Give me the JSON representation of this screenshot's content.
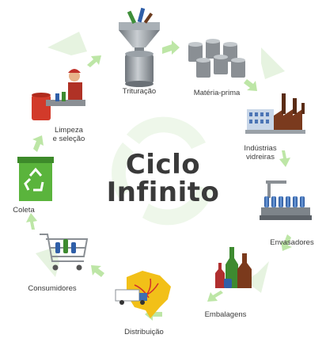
{
  "title": {
    "line1": "Ciclo",
    "line2": "Infinito"
  },
  "steps": {
    "trituracao": "Trituração",
    "materia_prima": "Matéria-prima",
    "industrias_line1": "Indústrias",
    "industrias_line2": "vidreiras",
    "envasadores": "Envasadores",
    "embalagens": "Embalagens",
    "distribuicao": "Distribuição",
    "consumidores": "Consumidores",
    "coleta": "Coleta",
    "limpeza_line1": "Limpeza",
    "limpeza_line2": "e seleção"
  },
  "colors": {
    "arrow_green": "#bde6a6",
    "recycle_bg": "#e4f2de",
    "bin_green": "#5ab43c",
    "glass_blue": "#2f5fa8",
    "barrel_gray": "#8a8f94",
    "brazil_yellow": "#f2c018"
  },
  "icons": [
    "crusher-icon",
    "barrels-icon",
    "factory-icon",
    "bottling-line-icon",
    "bottles-icon",
    "brazil-map-truck-icon",
    "shopping-cart-icon",
    "recycle-bin-icon",
    "worker-sorting-icon"
  ]
}
